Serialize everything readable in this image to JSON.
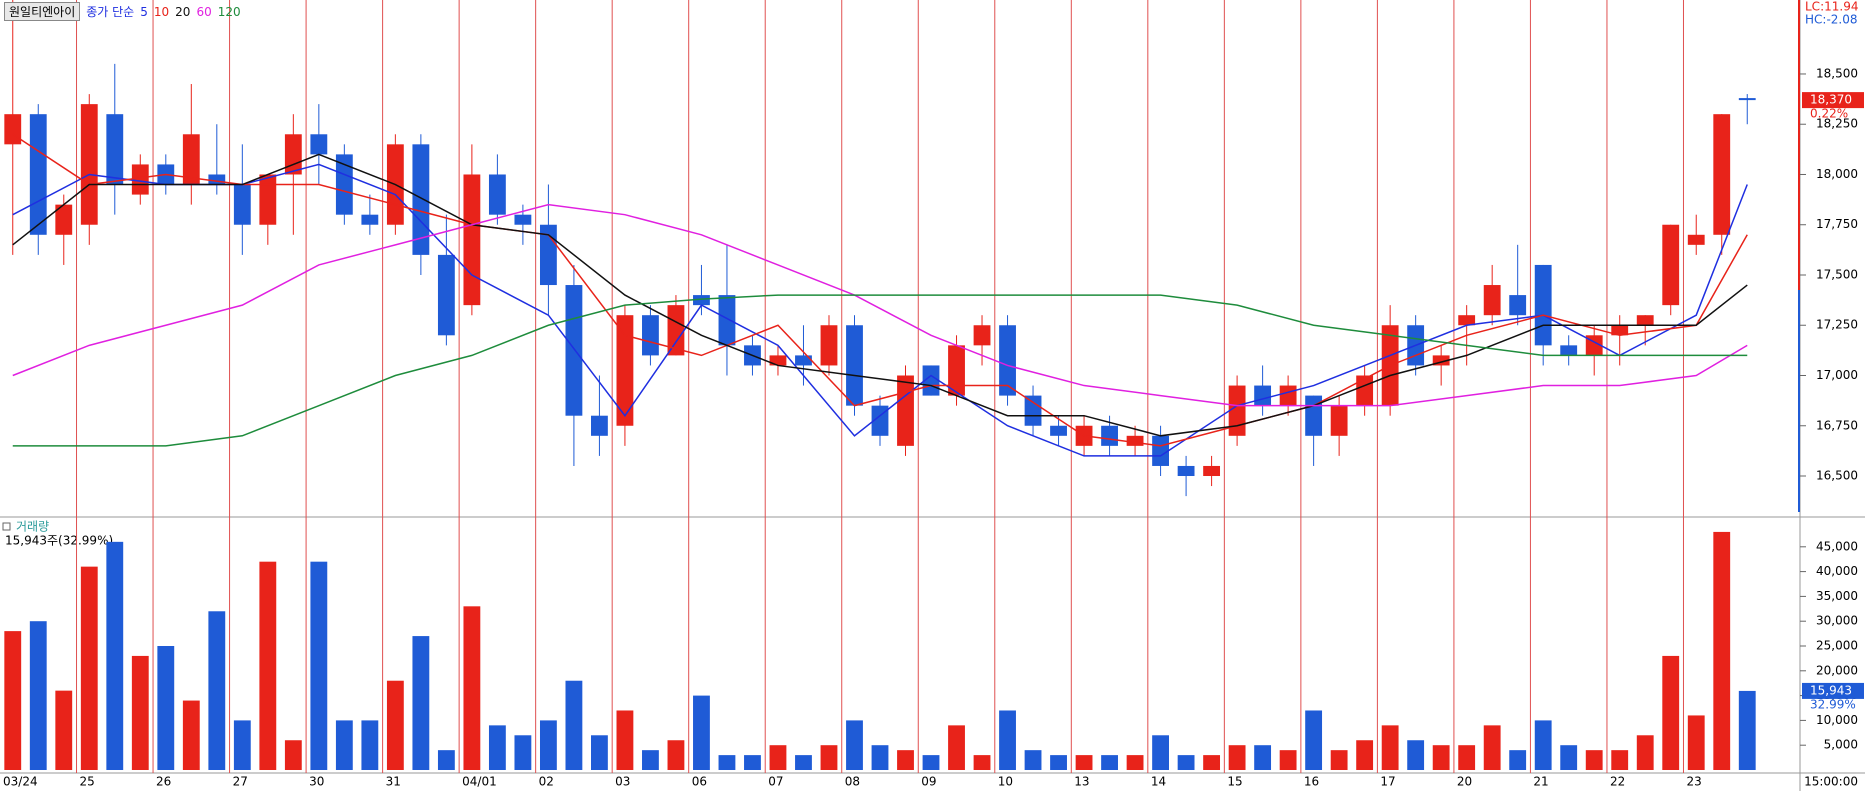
{
  "header": {
    "stock": "원일티엔아이",
    "ma_label": "종가 단순",
    "lc": "LC:11.94",
    "hc": "HC:-2.08"
  },
  "chart_data": [
    {
      "type": "candlestick",
      "categories": [
        "03/24",
        null,
        null,
        "25",
        null,
        null,
        "26",
        null,
        null,
        "27",
        null,
        null,
        "30",
        null,
        null,
        "31",
        null,
        null,
        "04/01",
        null,
        null,
        "02",
        null,
        null,
        "03",
        null,
        null,
        "06",
        null,
        null,
        "07",
        null,
        null,
        "08",
        null,
        null,
        "09",
        null,
        null,
        "10",
        null,
        null,
        "13",
        null,
        null,
        "14",
        null,
        null,
        "15",
        null,
        null,
        "16",
        null,
        null,
        "17",
        null,
        null,
        "20",
        null,
        null,
        "21",
        null,
        null,
        "22",
        null,
        null,
        "23",
        null,
        null
      ],
      "open": [
        18150,
        18300,
        17700,
        17750,
        18300,
        17900,
        18050,
        17950,
        18000,
        17950,
        17750,
        18000,
        18200,
        18100,
        17800,
        17750,
        18150,
        17600,
        17350,
        18000,
        17800,
        17750,
        17450,
        16800,
        16750,
        17300,
        17100,
        17400,
        17400,
        17150,
        17050,
        17100,
        17050,
        17250,
        16850,
        16650,
        17050,
        16900,
        17150,
        17250,
        16900,
        16750,
        16650,
        16750,
        16650,
        16700,
        16550,
        16500,
        16700,
        16950,
        16850,
        16900,
        16700,
        16850,
        16850,
        17250,
        17050,
        17250,
        17300,
        17400,
        17550,
        17150,
        17100,
        17200,
        17250,
        17350,
        17650,
        17700,
        18380
      ],
      "high": [
        18900,
        18350,
        17900,
        18400,
        18550,
        18100,
        18100,
        18450,
        18250,
        18150,
        18000,
        18300,
        18350,
        18150,
        17900,
        18200,
        18200,
        17800,
        18150,
        18100,
        17850,
        17950,
        17550,
        17000,
        17350,
        17350,
        17400,
        17550,
        17650,
        17200,
        17150,
        17250,
        17300,
        17300,
        16900,
        17050,
        17050,
        17200,
        17300,
        17300,
        16950,
        16800,
        16800,
        16800,
        16750,
        16750,
        16600,
        16600,
        17000,
        17050,
        17000,
        16900,
        16900,
        17050,
        17350,
        17300,
        17150,
        17350,
        17550,
        17650,
        17550,
        17200,
        17250,
        17300,
        17300,
        17750,
        17800,
        18300,
        18400
      ],
      "low": [
        17600,
        17600,
        17550,
        17650,
        17800,
        17850,
        17900,
        17850,
        17900,
        17600,
        17650,
        17700,
        17950,
        17750,
        17700,
        17700,
        17500,
        17150,
        17300,
        17750,
        17650,
        17300,
        16550,
        16600,
        16650,
        17050,
        17100,
        17300,
        17000,
        17000,
        17000,
        16950,
        17000,
        16800,
        16650,
        16600,
        16900,
        16850,
        17050,
        16850,
        16700,
        16650,
        16600,
        16600,
        16600,
        16500,
        16400,
        16450,
        16650,
        16800,
        16800,
        16550,
        16600,
        16800,
        16800,
        17000,
        16950,
        17050,
        17250,
        17250,
        17050,
        17050,
        17000,
        17050,
        17150,
        17300,
        17600,
        17600,
        18250
      ],
      "close": [
        18300,
        17700,
        17850,
        18350,
        17950,
        18050,
        17950,
        18200,
        17950,
        17750,
        18000,
        18200,
        18100,
        17800,
        17750,
        18150,
        17600,
        17200,
        18000,
        17800,
        17750,
        17450,
        16800,
        16700,
        17300,
        17100,
        17350,
        17350,
        17150,
        17050,
        17100,
        17050,
        17250,
        16850,
        16700,
        17000,
        16900,
        17150,
        17250,
        16900,
        16750,
        16700,
        16750,
        16650,
        16700,
        16550,
        16500,
        16550,
        16950,
        16850,
        16950,
        16700,
        16850,
        17000,
        17250,
        17050,
        17100,
        17300,
        17450,
        17300,
        17150,
        17100,
        17200,
        17250,
        17300,
        17750,
        17700,
        18300,
        18370
      ],
      "up_color": "#e8231a",
      "down_color": "#1f5bd6",
      "ylim": [
        16311,
        18868
      ],
      "yticks": [
        {
          "value": 16500,
          "label": "16,500"
        },
        {
          "value": 16750,
          "label": "16,750"
        },
        {
          "value": 17000,
          "label": "17,000"
        },
        {
          "value": 17250,
          "label": "17,250"
        },
        {
          "value": 17500,
          "label": "17,500"
        },
        {
          "value": 17750,
          "label": "17,750"
        },
        {
          "value": 18000,
          "label": "18,000"
        },
        {
          "value": 18250,
          "label": "18,250"
        },
        {
          "value": 18500,
          "label": "18,500"
        }
      ],
      "series": [
        {
          "name": "5",
          "color": "#1f2fe0",
          "x": [
            0,
            3,
            6,
            9,
            12,
            15,
            18,
            21,
            24,
            27,
            30,
            33,
            36,
            39,
            42,
            45,
            48,
            51,
            54,
            57,
            60,
            63,
            66,
            68
          ],
          "values": [
            17800,
            18000,
            17950,
            17950,
            18050,
            17900,
            17500,
            17300,
            16800,
            17350,
            17150,
            16700,
            17000,
            16750,
            16600,
            16600,
            16850,
            16950,
            17100,
            17250,
            17300,
            17100,
            17300,
            17950
          ]
        },
        {
          "name": "10",
          "color": "#e8231a",
          "x": [
            0,
            3,
            6,
            9,
            12,
            15,
            18,
            21,
            24,
            27,
            30,
            33,
            36,
            39,
            42,
            45,
            48,
            51,
            54,
            57,
            60,
            63,
            66,
            68
          ],
          "values": [
            18200,
            17950,
            18000,
            17950,
            17950,
            17850,
            17750,
            17700,
            17200,
            17100,
            17250,
            16850,
            16950,
            16950,
            16700,
            16650,
            16750,
            16850,
            17050,
            17200,
            17300,
            17200,
            17250,
            17700
          ]
        },
        {
          "name": "20",
          "color": "#111111",
          "x": [
            0,
            3,
            6,
            9,
            12,
            15,
            18,
            21,
            24,
            27,
            30,
            33,
            36,
            39,
            42,
            45,
            48,
            51,
            54,
            57,
            60,
            63,
            66,
            68
          ],
          "values": [
            17650,
            17950,
            17950,
            17950,
            18100,
            17950,
            17750,
            17700,
            17400,
            17200,
            17050,
            17000,
            16950,
            16800,
            16800,
            16700,
            16750,
            16850,
            17000,
            17100,
            17250,
            17250,
            17250,
            17450
          ]
        },
        {
          "name": "60",
          "color": "#e020e0",
          "x": [
            0,
            3,
            6,
            9,
            12,
            15,
            18,
            21,
            24,
            27,
            30,
            33,
            36,
            39,
            42,
            45,
            48,
            51,
            54,
            57,
            60,
            63,
            66,
            68
          ],
          "values": [
            17000,
            17150,
            17250,
            17350,
            17550,
            17650,
            17750,
            17850,
            17800,
            17700,
            17550,
            17400,
            17200,
            17050,
            16950,
            16900,
            16850,
            16850,
            16850,
            16900,
            16950,
            16950,
            17000,
            17150
          ]
        },
        {
          "name": "120",
          "color": "#1e8c3c",
          "x": [
            0,
            3,
            6,
            9,
            12,
            15,
            18,
            21,
            24,
            27,
            30,
            33,
            36,
            39,
            42,
            45,
            48,
            51,
            54,
            57,
            60,
            63,
            66,
            68
          ],
          "values": [
            16650,
            16650,
            16650,
            16700,
            16850,
            17000,
            17100,
            17250,
            17350,
            17380,
            17400,
            17400,
            17400,
            17400,
            17400,
            17400,
            17350,
            17250,
            17200,
            17150,
            17100,
            17100,
            17100,
            17100
          ]
        }
      ],
      "last_price": {
        "value": 18370,
        "label": "18,370",
        "change_label": "0.22%"
      }
    },
    {
      "type": "volume",
      "title": "거래량",
      "summary": "15,943주(32.99%)",
      "values": [
        28000,
        30000,
        16000,
        41000,
        46000,
        23000,
        25000,
        14000,
        32000,
        10000,
        42000,
        6000,
        42000,
        10000,
        10000,
        18000,
        27000,
        4000,
        33000,
        9000,
        7000,
        10000,
        18000,
        7000,
        12000,
        4000,
        6000,
        15000,
        3000,
        3000,
        5000,
        3000,
        5000,
        10000,
        5000,
        4000,
        3000,
        9000,
        3000,
        12000,
        4000,
        3000,
        3000,
        3000,
        3000,
        7000,
        3000,
        3000,
        5000,
        5000,
        4000,
        12000,
        4000,
        6000,
        9000,
        6000,
        5000,
        5000,
        9000,
        4000,
        10000,
        5000,
        4000,
        4000,
        7000,
        23000,
        11000,
        48000,
        15943
      ],
      "ylim": [
        0,
        50000
      ],
      "yticks": [
        {
          "value": 5000,
          "label": "5,000"
        },
        {
          "value": 10000,
          "label": "10,000"
        },
        {
          "value": 15000,
          "label": "15,000"
        },
        {
          "value": 20000,
          "label": "20,000"
        },
        {
          "value": 25000,
          "label": "25,000"
        },
        {
          "value": 30000,
          "label": "30,000"
        },
        {
          "value": 35000,
          "label": "35,000"
        },
        {
          "value": 40000,
          "label": "40,000"
        },
        {
          "value": 45000,
          "label": "45,000"
        }
      ],
      "last": {
        "value": 15943,
        "label": "15,943",
        "pct_label": "32.99%"
      }
    }
  ],
  "time_label": "15:00:00"
}
